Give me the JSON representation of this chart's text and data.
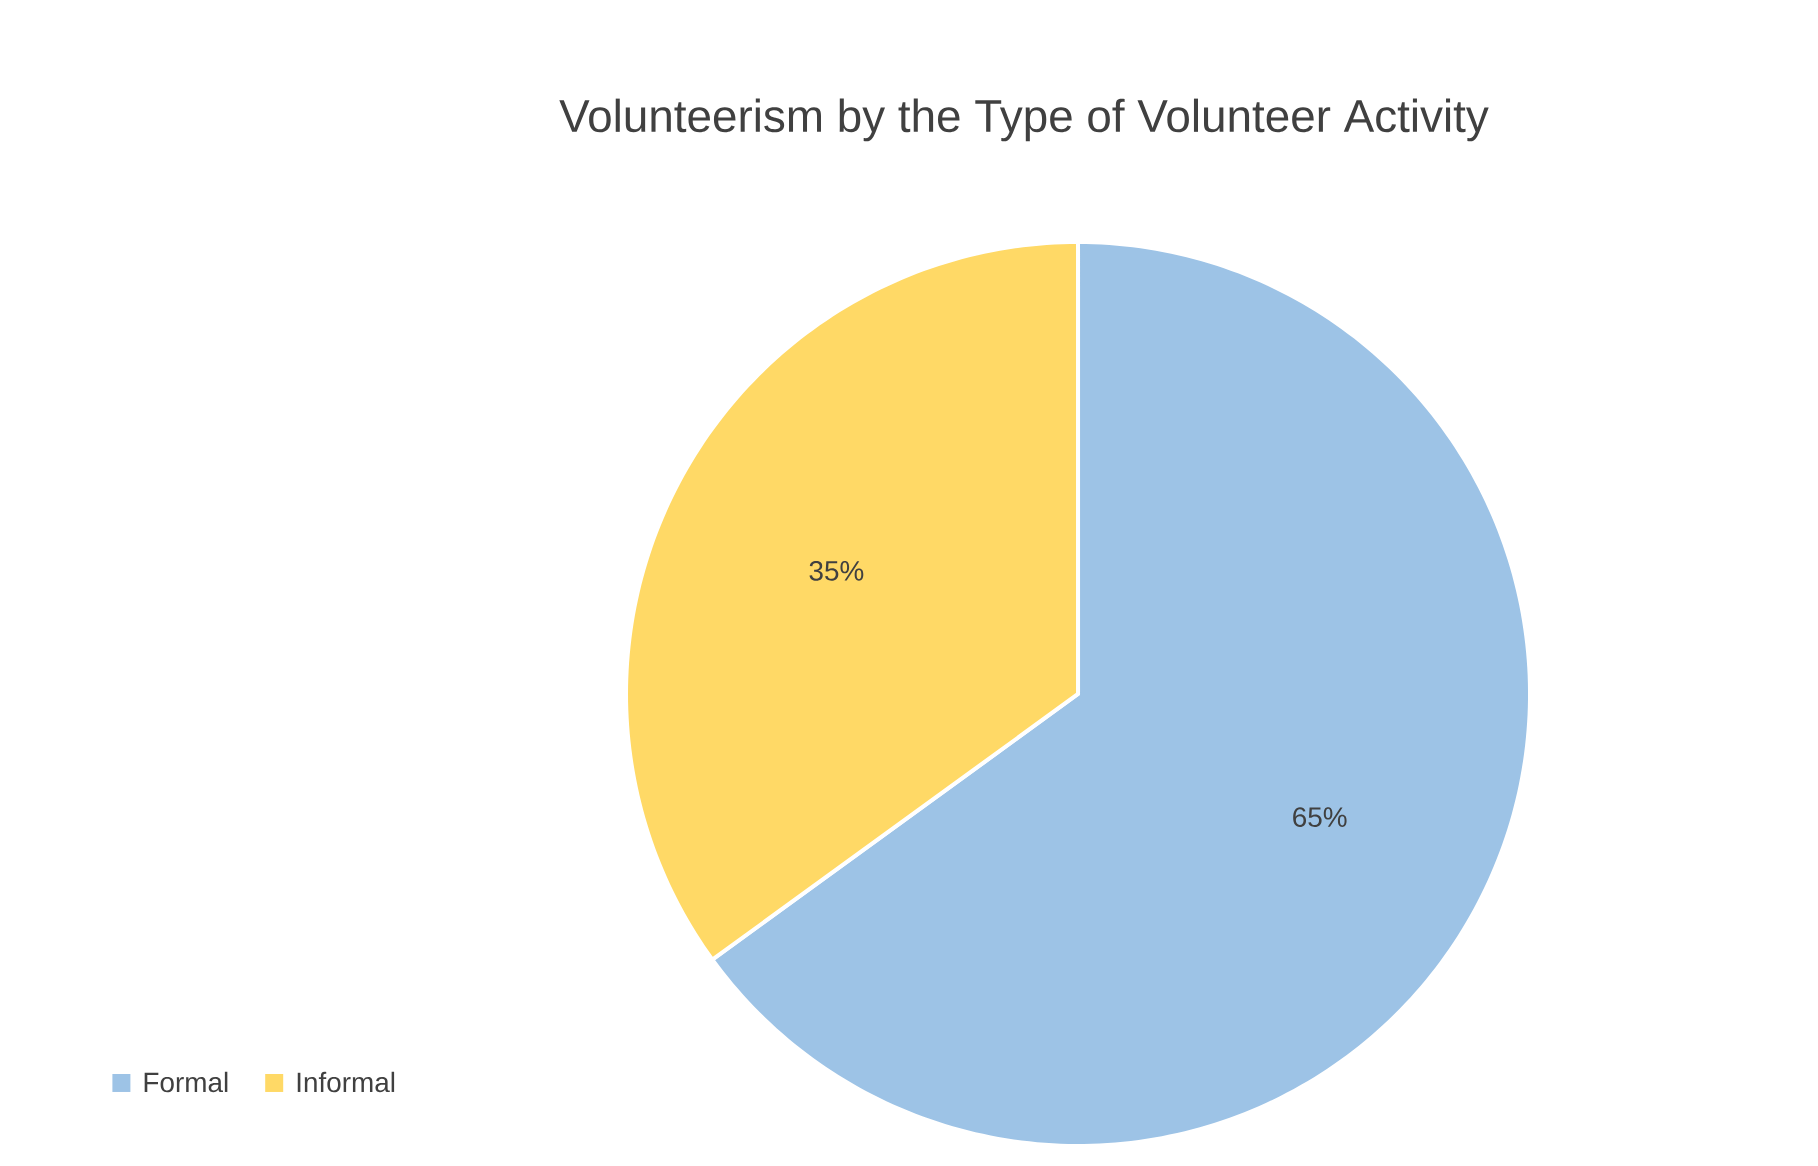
{
  "chart_data": {
    "type": "pie",
    "title": "Volunteerism by the Type of Volunteer Activity",
    "categories": [
      "Formal",
      "Informal"
    ],
    "values": [
      65,
      35
    ],
    "colors": [
      "#9dc3e6",
      "#ffd966"
    ],
    "value_labels": [
      "65%",
      "35%"
    ],
    "legend": "bottom left"
  }
}
